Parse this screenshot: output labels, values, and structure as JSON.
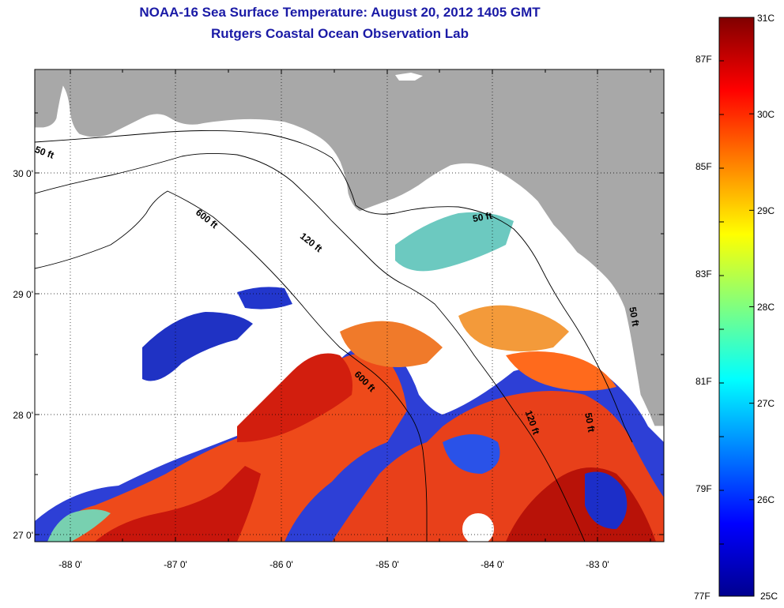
{
  "title_line1": "NOAA-16 Sea Surface Temperature:  August 20, 2012 1405 GMT",
  "title_line2": "Rutgers Coastal Ocean Observation Lab",
  "colors": {
    "land": "#a8a8a8",
    "ocean_nodata": "#ffffff",
    "title": "#1a1aa6"
  },
  "latitude_labels": [
    "30 0'",
    "29 0'",
    "28 0'",
    "27 0'"
  ],
  "longitude_labels": [
    "-88 0'",
    "-87 0'",
    "-86 0'",
    "-85 0'",
    "-84 0'",
    "-83 0'"
  ],
  "isobath_labels": [
    "50 ft",
    "600 ft",
    "120 ft",
    "50 ft",
    "600 ft",
    "120 ft",
    "50 ft",
    "50 ft"
  ],
  "colorbar": {
    "celsius": [
      "31C",
      "30C",
      "29C",
      "28C",
      "27C",
      "26C",
      "25C"
    ],
    "fahrenheit": [
      "87F",
      "85F",
      "83F",
      "81F",
      "79F",
      "77F"
    ],
    "min_c": 25,
    "max_c": 31
  }
}
